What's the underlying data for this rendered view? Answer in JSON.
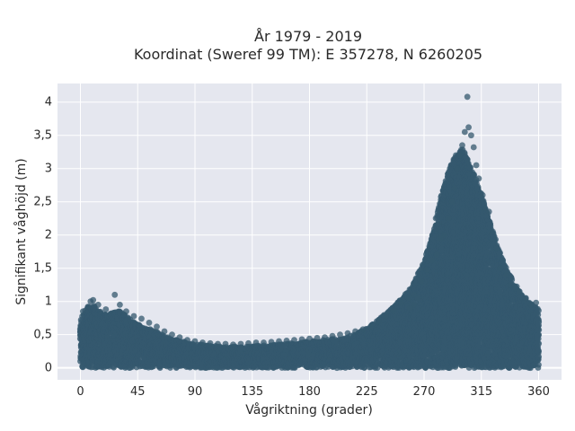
{
  "chart_data": {
    "type": "scatter",
    "title_line1": "År 1979 - 2019",
    "title_line2": "Koordinat (Sweref 99 TM): E 357278, N 6260205",
    "xlabel": "Vågriktning (grader)",
    "ylabel": "Signifikant våghöjd (m)",
    "xlim": [
      -18,
      378
    ],
    "ylim": [
      -0.18,
      4.28
    ],
    "xticks": [
      0,
      45,
      90,
      135,
      180,
      225,
      270,
      315,
      360
    ],
    "xtick_labels": [
      "0",
      "45",
      "90",
      "135",
      "180",
      "225",
      "270",
      "315",
      "360"
    ],
    "yticks": [
      0,
      0.5,
      1,
      1.5,
      2,
      2.5,
      3,
      3.5,
      4
    ],
    "ytick_labels": [
      "0",
      "0,5",
      "1",
      "1,5",
      "2",
      "2,5",
      "3",
      "3,5",
      "4"
    ],
    "grid": true,
    "marker_color": "#34586e",
    "background_color": "#e5e7ef",
    "envelope": {
      "x": [
        0,
        5,
        10,
        15,
        20,
        25,
        30,
        35,
        40,
        45,
        50,
        55,
        60,
        65,
        70,
        75,
        80,
        85,
        90,
        95,
        100,
        105,
        110,
        115,
        120,
        125,
        130,
        135,
        140,
        145,
        150,
        155,
        160,
        165,
        170,
        175,
        180,
        185,
        190,
        195,
        200,
        205,
        210,
        215,
        220,
        225,
        230,
        235,
        240,
        245,
        250,
        255,
        260,
        265,
        270,
        275,
        280,
        285,
        290,
        295,
        300,
        305,
        310,
        315,
        320,
        325,
        330,
        335,
        340,
        345,
        350,
        355,
        360
      ],
      "y": [
        0.72,
        0.92,
        0.95,
        0.85,
        0.82,
        0.82,
        0.88,
        0.8,
        0.72,
        0.66,
        0.6,
        0.58,
        0.55,
        0.5,
        0.45,
        0.42,
        0.4,
        0.38,
        0.36,
        0.35,
        0.34,
        0.33,
        0.32,
        0.32,
        0.32,
        0.32,
        0.32,
        0.33,
        0.34,
        0.34,
        0.35,
        0.35,
        0.36,
        0.37,
        0.38,
        0.39,
        0.4,
        0.41,
        0.42,
        0.43,
        0.44,
        0.45,
        0.47,
        0.5,
        0.55,
        0.6,
        0.66,
        0.74,
        0.82,
        0.9,
        1.0,
        1.1,
        1.22,
        1.4,
        1.6,
        1.9,
        2.3,
        2.7,
        3.0,
        3.2,
        3.3,
        3.1,
        2.9,
        2.6,
        2.3,
        2.0,
        1.7,
        1.5,
        1.3,
        1.15,
        1.05,
        0.95,
        0.9
      ]
    },
    "outliers": {
      "x": [
        304,
        305,
        302,
        307,
        300,
        309,
        298,
        311,
        296,
        313,
        294,
        316,
        292,
        318,
        289,
        321,
        286,
        324,
        283,
        327,
        280,
        330,
        276,
        335,
        272,
        338,
        268,
        342,
        265,
        345,
        262,
        350,
        259,
        354,
        8,
        10,
        14,
        20,
        27,
        31,
        36,
        42,
        48,
        54,
        60,
        66,
        72,
        78,
        84,
        90,
        96,
        102,
        108,
        114,
        120,
        126,
        132,
        138,
        144,
        150,
        156,
        162,
        168,
        174,
        180,
        186,
        192,
        198,
        204,
        210,
        216,
        222,
        228,
        234,
        240,
        246,
        252,
        258,
        262,
        2,
        358
      ],
      "y": [
        4.08,
        3.62,
        3.55,
        3.5,
        3.35,
        3.32,
        3.2,
        3.05,
        3.0,
        2.85,
        2.7,
        2.6,
        2.5,
        2.4,
        2.25,
        2.35,
        2.0,
        2.05,
        1.95,
        1.8,
        1.7,
        1.5,
        1.62,
        1.4,
        1.48,
        1.25,
        1.3,
        1.2,
        1.05,
        1.15,
        0.95,
        1.05,
        0.9,
        0.95,
        1.0,
        1.02,
        0.95,
        0.88,
        1.1,
        0.95,
        0.85,
        0.78,
        0.74,
        0.68,
        0.62,
        0.55,
        0.5,
        0.46,
        0.42,
        0.4,
        0.38,
        0.37,
        0.36,
        0.36,
        0.35,
        0.36,
        0.37,
        0.38,
        0.38,
        0.39,
        0.4,
        0.41,
        0.42,
        0.43,
        0.44,
        0.45,
        0.46,
        0.48,
        0.5,
        0.52,
        0.55,
        0.58,
        0.62,
        0.7,
        0.78,
        0.86,
        0.98,
        1.05,
        1.1,
        0.85,
        0.98
      ]
    }
  }
}
